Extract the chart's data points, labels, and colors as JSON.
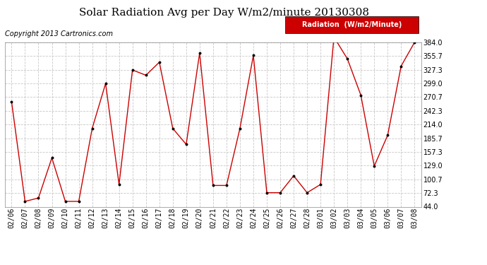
{
  "title": "Solar Radiation Avg per Day W/m2/minute 20130308",
  "copyright": "Copyright 2013 Cartronics.com",
  "legend_label": "Radiation  (W/m2/Minute)",
  "x_labels": [
    "02/06",
    "02/07",
    "02/08",
    "02/09",
    "02/10",
    "02/11",
    "02/12",
    "02/13",
    "02/14",
    "02/15",
    "02/16",
    "02/17",
    "02/18",
    "02/19",
    "02/20",
    "02/21",
    "02/22",
    "02/23",
    "02/24",
    "02/25",
    "02/26",
    "02/27",
    "02/28",
    "03/01",
    "03/02",
    "03/03",
    "03/04",
    "03/05",
    "03/06",
    "03/07",
    "03/08"
  ],
  "y_values": [
    261,
    55,
    62,
    145,
    55,
    55,
    206,
    299,
    90,
    327,
    316,
    343,
    206,
    173,
    362,
    88,
    88,
    206,
    357,
    73,
    73,
    108,
    73,
    90,
    395,
    350,
    275,
    128,
    192,
    335,
    384
  ],
  "y_ticks": [
    44.0,
    72.3,
    100.7,
    129.0,
    157.3,
    185.7,
    214.0,
    242.3,
    270.7,
    299.0,
    327.3,
    355.7,
    384.0
  ],
  "y_min": 44.0,
  "y_max": 384.0,
  "line_color": "#cc0000",
  "marker_color": "#000000",
  "bg_color": "#ffffff",
  "plot_bg_color": "#ffffff",
  "grid_color": "#c8c8c8",
  "legend_bg": "#cc0000",
  "legend_text_color": "#ffffff",
  "title_fontsize": 11,
  "copyright_fontsize": 7,
  "tick_fontsize": 7,
  "legend_fontsize": 7
}
